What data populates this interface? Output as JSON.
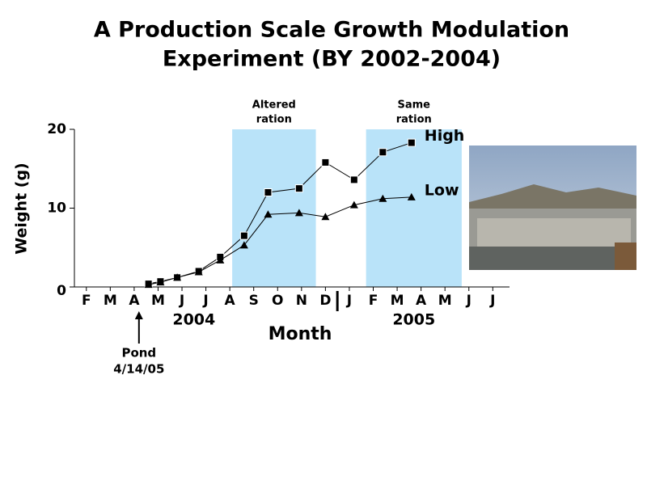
{
  "chart_data": {
    "type": "line",
    "title": [
      "A Production Scale Growth Modulation",
      "Experiment (BY 2002-2004)"
    ],
    "y_label": "Weight (g)",
    "x_label": "Month",
    "xlim": [
      1.5,
      19.7
    ],
    "ylim": [
      0,
      20
    ],
    "yticks": [
      0,
      10,
      20
    ],
    "xticks": [
      {
        "value": 2,
        "label": "F"
      },
      {
        "value": 3,
        "label": "M"
      },
      {
        "value": 4,
        "label": "A"
      },
      {
        "value": 5,
        "label": "M"
      },
      {
        "value": 6,
        "label": "J"
      },
      {
        "value": 7,
        "label": "J"
      },
      {
        "value": 8,
        "label": "A"
      },
      {
        "value": 9,
        "label": "S"
      },
      {
        "value": 10,
        "label": "O"
      },
      {
        "value": 11,
        "label": "N"
      },
      {
        "value": 12,
        "label": "D"
      },
      {
        "value": 13,
        "label": "J"
      },
      {
        "value": 14,
        "label": "F"
      },
      {
        "value": 15,
        "label": "M"
      },
      {
        "value": 16,
        "label": "A"
      },
      {
        "value": 17,
        "label": "M"
      },
      {
        "value": 18,
        "label": "J"
      },
      {
        "value": 19,
        "label": "J"
      }
    ],
    "year_labels": [
      {
        "value": 6.5,
        "label": "2004"
      },
      {
        "value": 15.7,
        "label": "2005"
      }
    ],
    "year_divider": 12.5,
    "shaded_regions": [
      {
        "label": [
          "Altered",
          "ration"
        ],
        "x": [
          8.1,
          11.6
        ]
      },
      {
        "label": [
          "Same",
          "ration"
        ],
        "x": [
          13.7,
          17.7
        ]
      }
    ],
    "shade_color": "#b9e3f9",
    "annotation": {
      "label": [
        "Pond",
        "4/14/05"
      ],
      "x": 4.2
    },
    "x": [
      4.6,
      5.1,
      5.8,
      6.7,
      7.6,
      8.6,
      9.6,
      10.9,
      12.0,
      13.2,
      14.4,
      15.6
    ],
    "series": [
      {
        "name": "High",
        "color": "#000000",
        "marker": "square",
        "values": [
          0.4,
          0.7,
          1.2,
          2.0,
          3.8,
          6.5,
          12.0,
          12.5,
          15.8,
          13.6,
          17.1,
          18.3
        ]
      },
      {
        "name": "Low",
        "color": "#000000",
        "marker": "triangle",
        "values": [
          0.3,
          0.6,
          1.2,
          1.9,
          3.4,
          5.3,
          9.2,
          9.4,
          8.9,
          10.4,
          11.2,
          11.4
        ]
      }
    ]
  }
}
